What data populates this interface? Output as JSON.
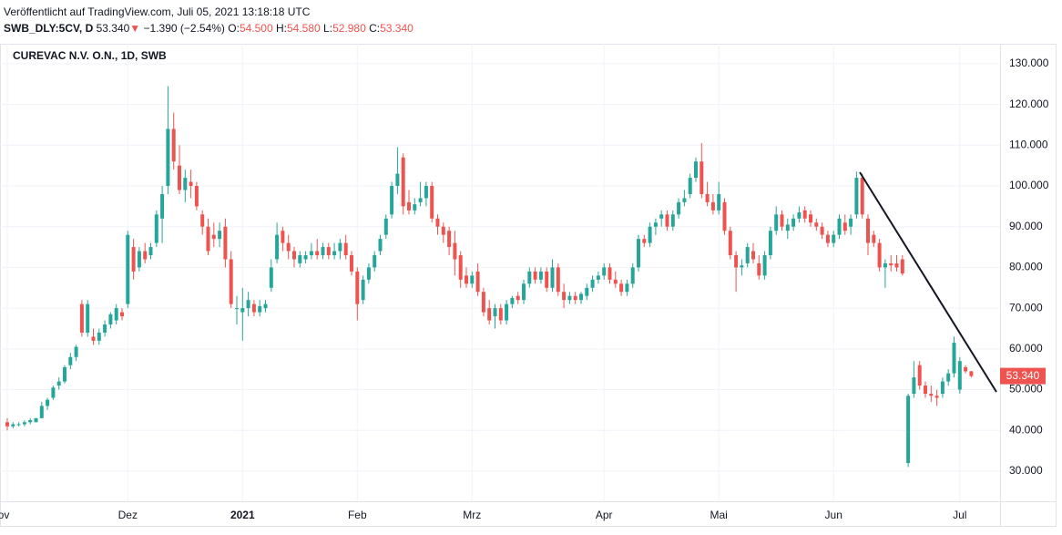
{
  "header": {
    "published": "Veröffentlicht auf TradingView.com, Juli 05, 2021 13:18:18 UTC",
    "symbol": "SWB_DLY:5CV, D",
    "price": "53.340",
    "arrow": "▼",
    "change": "−1.390 (−2.54%)",
    "o_label": "O:",
    "o": "54.500",
    "h_label": "H:",
    "h": "54.580",
    "l_label": "L:",
    "l": "52.980",
    "c_label": "C:",
    "c": "53.340"
  },
  "chart_data": {
    "type": "candlestick",
    "title": "CUREVAC N.V. O.N., 1D, SWB",
    "up_color": "#26a69a",
    "down_color": "#ef5350",
    "grid": true,
    "ylim": [
      22.6,
      134.9
    ],
    "yticks": [
      {
        "value": 30,
        "label": "30.000"
      },
      {
        "value": 40,
        "label": "40.000"
      },
      {
        "value": 50,
        "label": "50.000"
      },
      {
        "value": 60,
        "label": "60.000"
      },
      {
        "value": 70,
        "label": "70.000"
      },
      {
        "value": 80,
        "label": "80.000"
      },
      {
        "value": 90,
        "label": "90.000"
      },
      {
        "value": 100,
        "label": "100.000"
      },
      {
        "value": 110,
        "label": "110.000"
      },
      {
        "value": 120,
        "label": "120.000"
      },
      {
        "value": 130,
        "label": "130.000"
      }
    ],
    "last_price_label": "53.340",
    "categories": [
      "ov",
      null,
      null,
      null,
      null,
      null,
      null,
      null,
      null,
      null,
      null,
      null,
      null,
      null,
      null,
      null,
      null,
      null,
      null,
      null,
      null,
      "Dez",
      null,
      null,
      null,
      null,
      null,
      null,
      null,
      null,
      null,
      null,
      null,
      null,
      null,
      null,
      null,
      null,
      null,
      null,
      null,
      "2021",
      null,
      null,
      null,
      null,
      null,
      null,
      null,
      null,
      null,
      null,
      null,
      null,
      null,
      null,
      null,
      null,
      null,
      null,
      null,
      "Feb",
      null,
      null,
      null,
      null,
      null,
      null,
      null,
      null,
      null,
      null,
      null,
      null,
      null,
      null,
      null,
      null,
      null,
      null,
      null,
      "Mrz",
      null,
      null,
      null,
      null,
      null,
      null,
      null,
      null,
      null,
      null,
      null,
      null,
      null,
      null,
      null,
      null,
      null,
      null,
      null,
      null,
      null,
      null,
      "Apr",
      null,
      null,
      null,
      null,
      null,
      null,
      null,
      null,
      null,
      null,
      null,
      null,
      null,
      null,
      null,
      null,
      null,
      null,
      null,
      "Mai",
      null,
      null,
      null,
      null,
      null,
      null,
      null,
      null,
      null,
      null,
      null,
      null,
      null,
      null,
      null,
      null,
      null,
      null,
      null,
      "Jun",
      null,
      null,
      null,
      null,
      null,
      null,
      null,
      null,
      null,
      null,
      null,
      null,
      null,
      null,
      null,
      null,
      null,
      null,
      null,
      null,
      null,
      "Jul",
      null,
      null
    ],
    "ohlc": [
      [
        42,
        43,
        40,
        41
      ],
      [
        41,
        42,
        40.5,
        41.5
      ],
      [
        41.5,
        42,
        41,
        41.5
      ],
      [
        41.5,
        42.5,
        41,
        42
      ],
      [
        42,
        43,
        41.5,
        42.5
      ],
      [
        42,
        43,
        42,
        43
      ],
      [
        43,
        47,
        43,
        46
      ],
      [
        46,
        48,
        45,
        47.5
      ],
      [
        48,
        51,
        47.5,
        50.5
      ],
      [
        51,
        53,
        50,
        52
      ],
      [
        52,
        56,
        51.5,
        55.5
      ],
      [
        56,
        59,
        55,
        58
      ],
      [
        58,
        61,
        57,
        60.5
      ],
      [
        71,
        72,
        63,
        64
      ],
      [
        64,
        72,
        63,
        71
      ],
      [
        63,
        65,
        61,
        62
      ],
      [
        62,
        65,
        61,
        64
      ],
      [
        64,
        67,
        63,
        66
      ],
      [
        66,
        69,
        65,
        68.5
      ],
      [
        67,
        71,
        66,
        70
      ],
      [
        69,
        70,
        67,
        68
      ],
      [
        71,
        89,
        70,
        88
      ],
      [
        85,
        87,
        77,
        79
      ],
      [
        80,
        85,
        79,
        84
      ],
      [
        84,
        86,
        81,
        82
      ],
      [
        83,
        86,
        82,
        85
      ],
      [
        86,
        94,
        85,
        93
      ],
      [
        92,
        100,
        86,
        98
      ],
      [
        100,
        124.5,
        98,
        114
      ],
      [
        114,
        118,
        104,
        106
      ],
      [
        105,
        110,
        98,
        99
      ],
      [
        99,
        104,
        96,
        102
      ],
      [
        101,
        104,
        97,
        100
      ],
      [
        100,
        101,
        94,
        95
      ],
      [
        93,
        94,
        88,
        90
      ],
      [
        90,
        92,
        83,
        84
      ],
      [
        88,
        91,
        85,
        87
      ],
      [
        87,
        91,
        85,
        89
      ],
      [
        90,
        92,
        80,
        82
      ],
      [
        82,
        84,
        70,
        71
      ],
      [
        70,
        73,
        66,
        70
      ],
      [
        69,
        75,
        62,
        70
      ],
      [
        70,
        74,
        68,
        72
      ],
      [
        71,
        72,
        68,
        69
      ],
      [
        69,
        72,
        68,
        70.5
      ],
      [
        70,
        72,
        69,
        71
      ],
      [
        75,
        82,
        74,
        80
      ],
      [
        82,
        91,
        81,
        88
      ],
      [
        89,
        90,
        84,
        86
      ],
      [
        86,
        88,
        82,
        84
      ],
      [
        84,
        85,
        80,
        82
      ],
      [
        81,
        84,
        80,
        83
      ],
      [
        82,
        84,
        81,
        83
      ],
      [
        83,
        86,
        82,
        84
      ],
      [
        84,
        87,
        82,
        83
      ],
      [
        83,
        86,
        82,
        85
      ],
      [
        85,
        86,
        82,
        83
      ],
      [
        83,
        86,
        82,
        84
      ],
      [
        84,
        87,
        82,
        86
      ],
      [
        86,
        88,
        82,
        83
      ],
      [
        83,
        84,
        78,
        79
      ],
      [
        79,
        80,
        67,
        71
      ],
      [
        72,
        78,
        71,
        77
      ],
      [
        77,
        81,
        76,
        80
      ],
      [
        80,
        84,
        79,
        83
      ],
      [
        84,
        88,
        83,
        87
      ],
      [
        88,
        93,
        87,
        92
      ],
      [
        93,
        101,
        92,
        100
      ],
      [
        100,
        109.5,
        98,
        103
      ],
      [
        107,
        108,
        93,
        95
      ],
      [
        96,
        99,
        93,
        94
      ],
      [
        94,
        97,
        93,
        95.5
      ],
      [
        96,
        101,
        95,
        97
      ],
      [
        97,
        101,
        95,
        100
      ],
      [
        100,
        101,
        91,
        92
      ],
      [
        92,
        93,
        88,
        90
      ],
      [
        90,
        91,
        86,
        88
      ],
      [
        89,
        90,
        83,
        85
      ],
      [
        86,
        89,
        78,
        82
      ],
      [
        83,
        84,
        75,
        77
      ],
      [
        78,
        80,
        75,
        76
      ],
      [
        76,
        79,
        75,
        78
      ],
      [
        79,
        81,
        73,
        74
      ],
      [
        74,
        75,
        68,
        69
      ],
      [
        70,
        72,
        66,
        67
      ],
      [
        68,
        71,
        65,
        70
      ],
      [
        70,
        71,
        66,
        67
      ],
      [
        67,
        72,
        66,
        71
      ],
      [
        71,
        73,
        70,
        72.5
      ],
      [
        73,
        74,
        71,
        72
      ],
      [
        72,
        77,
        71,
        76
      ],
      [
        76,
        80,
        75,
        79
      ],
      [
        79,
        80,
        76,
        77
      ],
      [
        77,
        80,
        76,
        79
      ],
      [
        79,
        80,
        74,
        75
      ],
      [
        75,
        82,
        74,
        80
      ],
      [
        80,
        81,
        73,
        74
      ],
      [
        74,
        76,
        70,
        72
      ],
      [
        72,
        74,
        71,
        73
      ],
      [
        73,
        74,
        71,
        72
      ],
      [
        72,
        74,
        71,
        73.5
      ],
      [
        73,
        76,
        72,
        75
      ],
      [
        75,
        78,
        74,
        77
      ],
      [
        77,
        79,
        76,
        78
      ],
      [
        78,
        81,
        77,
        80
      ],
      [
        80,
        81,
        76,
        77
      ],
      [
        77,
        79,
        75,
        76
      ],
      [
        76,
        77,
        73,
        74
      ],
      [
        74,
        77,
        73,
        76
      ],
      [
        76,
        81,
        75,
        80
      ],
      [
        80,
        88,
        79,
        87
      ],
      [
        87,
        88,
        85,
        86
      ],
      [
        86,
        91,
        85,
        90
      ],
      [
        90,
        92,
        88,
        91
      ],
      [
        92,
        94,
        90,
        93
      ],
      [
        93,
        94,
        89,
        90
      ],
      [
        90,
        94,
        89,
        93
      ],
      [
        93,
        97,
        92,
        96
      ],
      [
        96,
        99,
        95,
        97
      ],
      [
        98,
        103,
        97,
        102
      ],
      [
        102,
        107,
        101,
        106
      ],
      [
        106,
        110.5,
        97,
        98
      ],
      [
        98,
        101,
        95,
        96
      ],
      [
        96,
        98,
        93,
        94
      ],
      [
        94,
        101,
        93,
        98
      ],
      [
        96,
        97,
        88,
        89
      ],
      [
        89,
        90,
        82,
        83
      ],
      [
        83,
        84,
        74,
        80
      ],
      [
        80,
        82,
        78,
        80.5
      ],
      [
        81,
        86,
        80,
        85
      ],
      [
        84,
        86,
        81,
        82
      ],
      [
        81,
        83,
        77,
        78
      ],
      [
        78,
        84,
        77,
        83
      ],
      [
        83,
        90,
        82,
        89
      ],
      [
        89,
        95,
        88,
        93
      ],
      [
        93,
        94,
        89,
        90
      ],
      [
        89,
        92,
        87,
        90.5
      ],
      [
        90,
        93,
        89,
        92
      ],
      [
        92,
        95,
        91,
        93.5
      ],
      [
        94,
        95,
        91,
        92
      ],
      [
        93,
        94,
        90,
        91
      ],
      [
        91,
        92,
        89,
        90
      ],
      [
        90,
        91,
        87,
        88
      ],
      [
        88,
        89,
        85,
        86
      ],
      [
        86,
        89,
        85,
        88
      ],
      [
        88,
        93,
        87,
        92
      ],
      [
        91,
        93,
        88,
        89
      ],
      [
        90,
        93,
        88,
        92
      ],
      [
        93,
        103.5,
        92,
        102
      ],
      [
        102,
        103,
        92,
        93
      ],
      [
        92,
        93,
        83,
        86
      ],
      [
        88,
        89,
        85,
        86
      ],
      [
        86,
        87,
        79,
        80
      ],
      [
        80,
        82,
        75,
        81
      ],
      [
        81,
        83,
        79,
        80.5
      ],
      [
        81,
        83,
        79,
        80
      ],
      [
        82,
        83,
        78,
        78.5
      ],
      [
        32,
        49,
        31,
        48.5
      ],
      [
        49,
        57,
        48,
        53
      ],
      [
        56,
        57,
        50,
        51
      ],
      [
        51,
        52,
        48,
        49
      ],
      [
        49,
        51,
        47,
        48.5
      ],
      [
        48.5,
        50,
        46,
        48
      ],
      [
        49,
        53,
        48,
        52
      ],
      [
        52,
        55,
        51,
        54
      ],
      [
        54,
        63,
        53,
        61.5
      ],
      [
        50,
        58,
        49,
        57
      ],
      [
        55.5,
        56,
        54,
        54.5
      ],
      [
        54.5,
        54.58,
        52.98,
        53.34
      ]
    ]
  }
}
